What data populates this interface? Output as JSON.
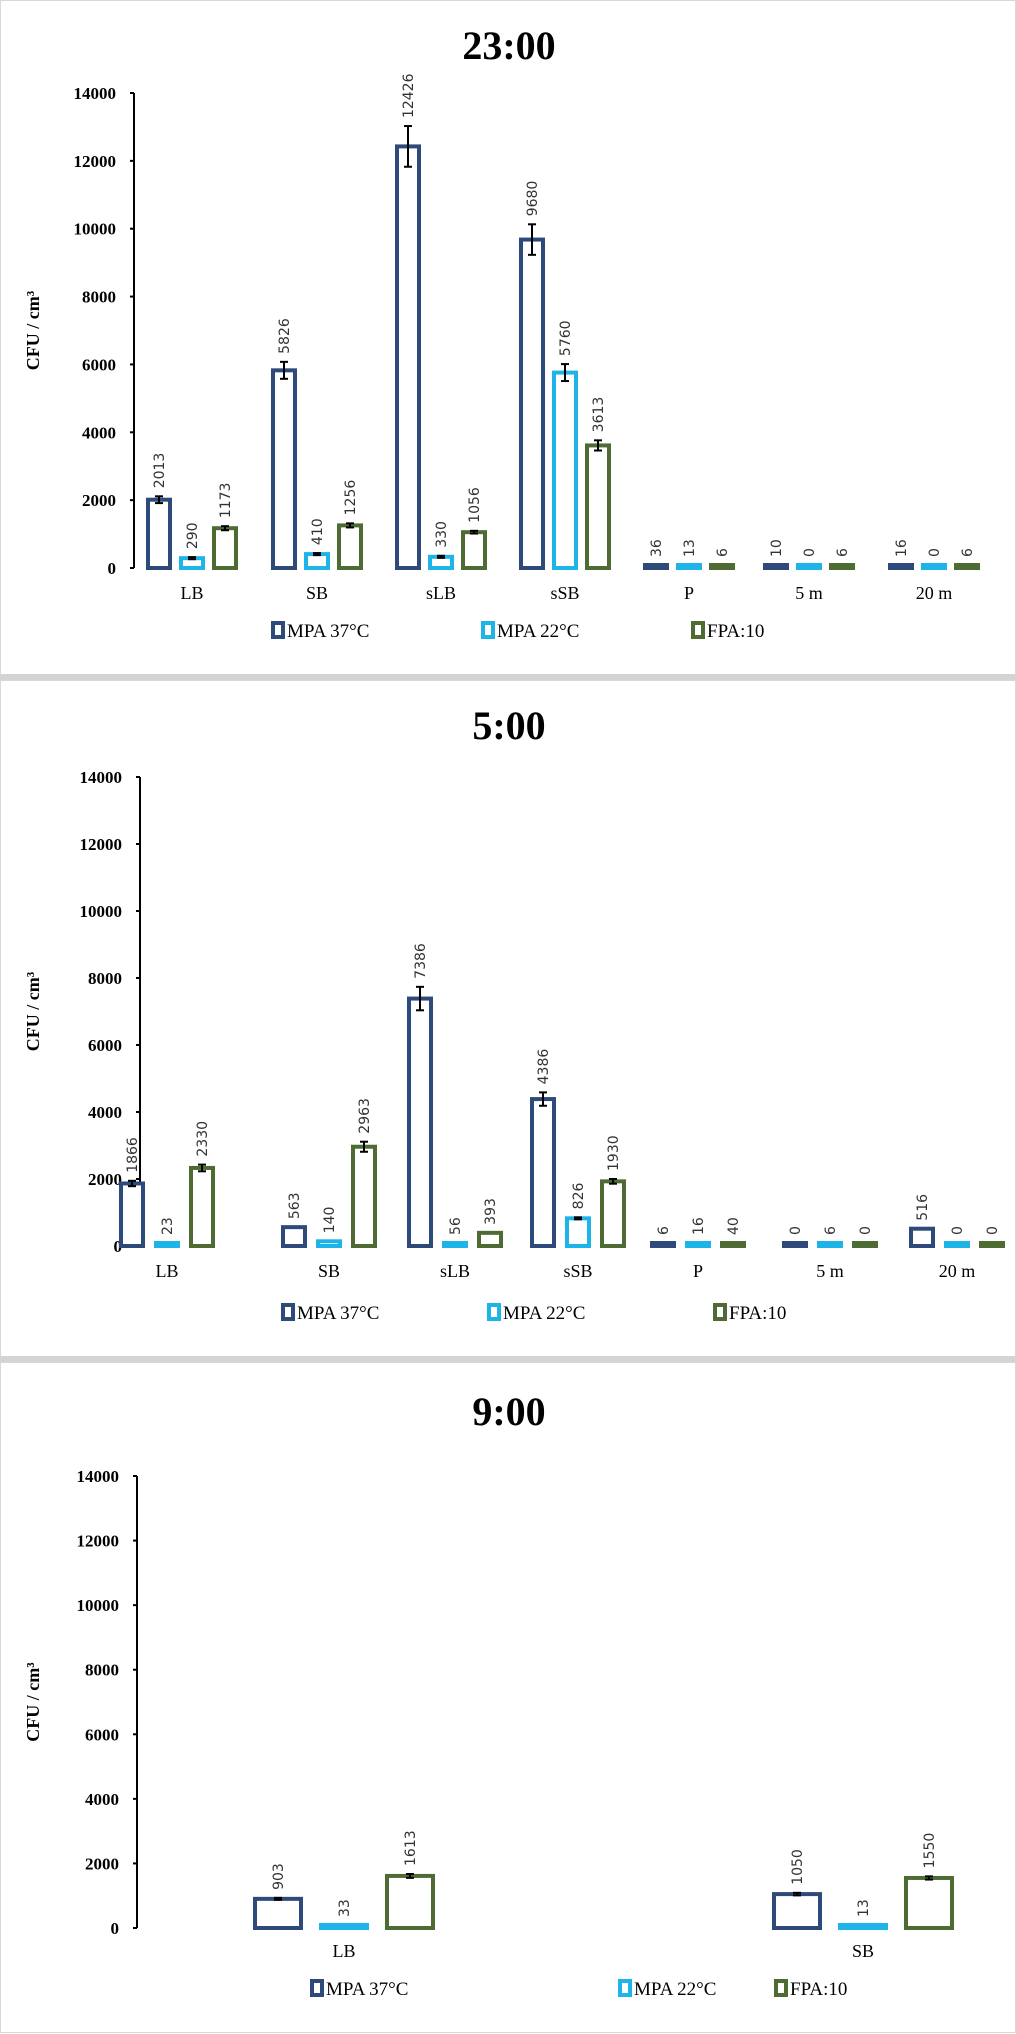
{
  "chart_data": [
    {
      "type": "bar",
      "title": "23:00",
      "ylabel": "CFU / cm³",
      "ylim": [
        0,
        14000
      ],
      "yticks": [
        "0",
        "2000",
        "4000",
        "6000",
        "8000",
        "10000",
        "12000",
        "14000"
      ],
      "categories": [
        "LB",
        "SB",
        "sLB",
        "sSB",
        "P",
        "5 m",
        "20 m"
      ],
      "legend_position": "bottom",
      "series": [
        {
          "name": "MPA 37°C",
          "color": "#2e4a7a",
          "values": [
            2013,
            5826,
            12426,
            9680,
            36,
            10,
            16
          ],
          "errors": [
            100,
            250,
            600,
            450,
            0,
            0,
            0
          ]
        },
        {
          "name": "MPA 22°C",
          "color": "#1fb4e8",
          "values": [
            290,
            410,
            330,
            5760,
            13,
            0,
            0
          ],
          "errors": [
            30,
            30,
            30,
            250,
            0,
            0,
            0
          ]
        },
        {
          "name": "FPA:10",
          "color": "#4e6b34",
          "values": [
            1173,
            1256,
            1056,
            3613,
            6,
            6,
            6
          ],
          "errors": [
            60,
            60,
            40,
            150,
            0,
            0,
            0
          ]
        }
      ]
    },
    {
      "type": "bar",
      "title": "5:00",
      "ylabel": "CFU / cm³",
      "ylim": [
        0,
        14000
      ],
      "yticks": [
        "0",
        "2000",
        "4000",
        "6000",
        "8000",
        "10000",
        "12000",
        "14000"
      ],
      "categories": [
        "LB",
        "SB",
        "sLB",
        "sSB",
        "P",
        "5 m",
        "20 m"
      ],
      "legend_position": "bottom",
      "series": [
        {
          "name": "MPA 37°C",
          "color": "#2e4a7a",
          "values": [
            1866,
            563,
            7386,
            4386,
            6,
            0,
            516
          ],
          "errors": [
            80,
            0,
            350,
            200,
            0,
            0,
            0
          ]
        },
        {
          "name": "MPA 22°C",
          "color": "#1fb4e8",
          "values": [
            23,
            140,
            56,
            826,
            16,
            6,
            0
          ],
          "errors": [
            0,
            0,
            0,
            30,
            0,
            0,
            0
          ]
        },
        {
          "name": "FPA:10",
          "color": "#4e6b34",
          "values": [
            2330,
            2963,
            393,
            1930,
            40,
            0,
            0
          ],
          "errors": [
            100,
            150,
            0,
            70,
            0,
            0,
            0
          ]
        }
      ]
    },
    {
      "type": "bar",
      "title": "9:00",
      "ylabel": "CFU / cm³",
      "ylim": [
        0,
        14000
      ],
      "yticks": [
        "0",
        "2000",
        "4000",
        "6000",
        "8000",
        "10000",
        "12000",
        "14000"
      ],
      "categories": [
        "LB",
        "SB"
      ],
      "legend_position": "bottom",
      "series": [
        {
          "name": "MPA 37°C",
          "color": "#2e4a7a",
          "values": [
            903,
            1050
          ],
          "errors": [
            30,
            40
          ]
        },
        {
          "name": "MPA 22°C",
          "color": "#1fb4e8",
          "values": [
            33,
            13
          ],
          "errors": [
            0,
            0
          ]
        },
        {
          "name": "FPA:10",
          "color": "#4e6b34",
          "values": [
            1613,
            1550
          ],
          "errors": [
            60,
            50
          ]
        }
      ]
    }
  ]
}
